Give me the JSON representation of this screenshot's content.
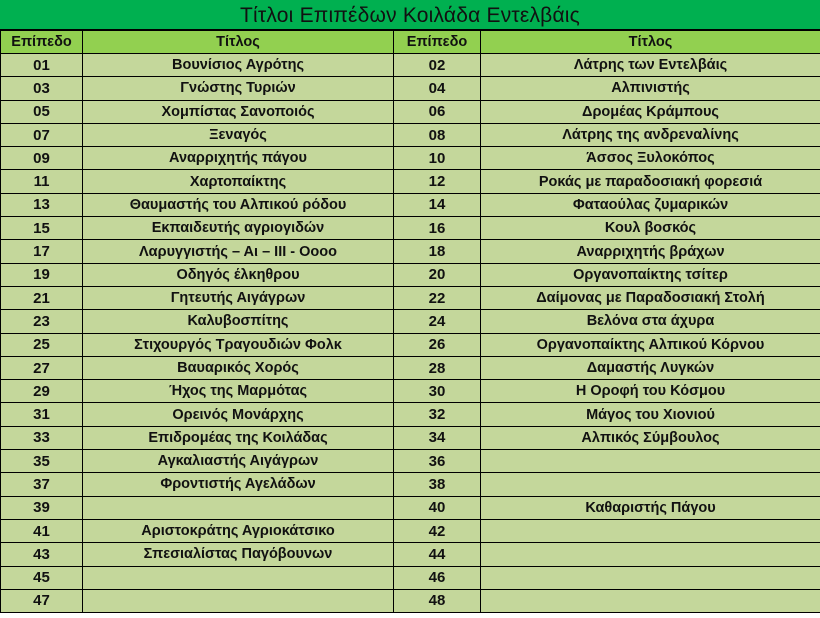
{
  "title": "Τίτλοι Επιπέδων Κοιλάδα Εντελβάις",
  "headers": {
    "level": "Επίπεδο",
    "title": "Τίτλος"
  },
  "colors": {
    "title_bg": "#00b050",
    "header_bg": "#92d050",
    "row_bg": "#c4d79b"
  },
  "rows": [
    {
      "l1": "01",
      "t1": "Βουνίσιος Αγρότης",
      "l2": "02",
      "t2": "Λάτρης των Εντελβάις"
    },
    {
      "l1": "03",
      "t1": "Γνώστης Τυριών",
      "l2": "04",
      "t2": "Αλπινιστής"
    },
    {
      "l1": "05",
      "t1": "Χομπίστας Σανοποιός",
      "l2": "06",
      "t2": "Δρομέας Κράμπους"
    },
    {
      "l1": "07",
      "t1": "Ξεναγός",
      "l2": "08",
      "t2": "Λάτρης της ανδρεναλίνης"
    },
    {
      "l1": "09",
      "t1": "Αναρριχητής πάγου",
      "l2": "10",
      "t2": "Άσσος Ξυλοκόπος"
    },
    {
      "l1": "11",
      "t1": "Χαρτοπαίκτης",
      "l2": "12",
      "t2": "Ροκάς με παραδοσιακή φορεσιά"
    },
    {
      "l1": "13",
      "t1": "Θαυμαστής του Αλπικού ρόδου",
      "l2": "14",
      "t2": "Φαταούλας ζυμαρικών"
    },
    {
      "l1": "15",
      "t1": "Εκπαιδευτής αγριογιδών",
      "l2": "16",
      "t2": "Κουλ βοσκός"
    },
    {
      "l1": "17",
      "t1": "Λαρυγγιστής – Αι – ΙΙΙ - Οοοο",
      "l2": "18",
      "t2": "Αναρριχητής βράχων"
    },
    {
      "l1": "19",
      "t1": "Οδηγός έλκηθρου",
      "l2": "20",
      "t2": "Οργανοπαίκτης τσίτερ"
    },
    {
      "l1": "21",
      "t1": "Γητευτής Αιγάγρων",
      "l2": "22",
      "t2": "Δαίμονας με Παραδοσιακή Στολή"
    },
    {
      "l1": "23",
      "t1": "Καλυβοσπίτης",
      "l2": "24",
      "t2": "Βελόνα στα άχυρα"
    },
    {
      "l1": "25",
      "t1": "Στιχουργός Τραγουδιών Φολκ",
      "l2": "26",
      "t2": "Οργανοπαίκτης Αλπικού Κόρνου"
    },
    {
      "l1": "27",
      "t1": "Βαυαρικός Χορός",
      "l2": "28",
      "t2": "Δαμαστής Λυγκών"
    },
    {
      "l1": "29",
      "t1": "Ήχος της Μαρμότας",
      "l2": "30",
      "t2": "Η Οροφή του Κόσμου"
    },
    {
      "l1": "31",
      "t1": "Ορεινός Μονάρχης",
      "l2": "32",
      "t2": "Μάγος του Χιονιού"
    },
    {
      "l1": "33",
      "t1": "Επιδρομέας της Κοιλάδας",
      "l2": "34",
      "t2": "Αλπικός Σύμβουλος"
    },
    {
      "l1": "35",
      "t1": "Αγκαλιαστής Αιγάγρων",
      "l2": "36",
      "t2": ""
    },
    {
      "l1": "37",
      "t1": "Φροντιστής Αγελάδων",
      "l2": "38",
      "t2": ""
    },
    {
      "l1": "39",
      "t1": "",
      "l2": "40",
      "t2": "Καθαριστής Πάγου"
    },
    {
      "l1": "41",
      "t1": "Αριστοκράτης Αγριοκάτσικο",
      "l2": "42",
      "t2": ""
    },
    {
      "l1": "43",
      "t1": "Σπεσιαλίστας Παγόβουνων",
      "l2": "44",
      "t2": ""
    },
    {
      "l1": "45",
      "t1": "",
      "l2": "46",
      "t2": ""
    },
    {
      "l1": "47",
      "t1": "",
      "l2": "48",
      "t2": ""
    }
  ]
}
